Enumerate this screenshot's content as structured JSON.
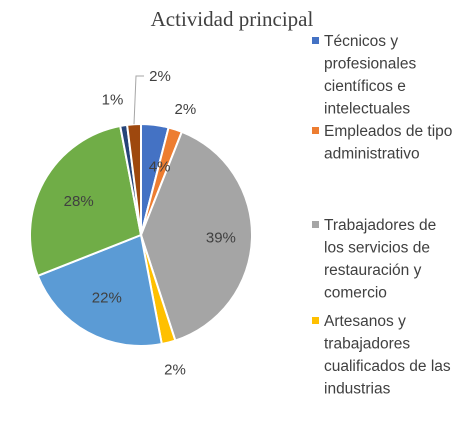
{
  "chart_data": {
    "type": "pie",
    "title": "Actividad principal",
    "start_angle_deg": 0,
    "direction": "clockwise",
    "slices": [
      {
        "label": "Técnicos y profesionales científicos e intelectuales",
        "value": 4,
        "display": "4%",
        "color": "#4472C4",
        "label_lines": [
          "Técnicos y",
          "profesionales",
          "científicos e",
          "intelectuales"
        ]
      },
      {
        "label": "Empleados de tipo administrativo",
        "value": 2,
        "display": "2%",
        "color": "#ED7D31",
        "label_lines": [
          "Empleados de tipo",
          "administrativo"
        ]
      },
      {
        "label": "Trabajadores de los servicios de restauración y comercio",
        "value": 39,
        "display": "39%",
        "color": "#A5A5A5",
        "label_lines": [
          "Trabajadores de",
          "los servicios de",
          "restauración y",
          "comercio"
        ]
      },
      {
        "label": "Artesanos y trabajadores cualificados de las industrias",
        "value": 2,
        "display": "2%",
        "color": "#FFC000",
        "label_lines": [
          "Artesanos y",
          "trabajadores",
          "cualificados de las",
          "industrias"
        ]
      },
      {
        "label": "",
        "value": 22,
        "display": "22%",
        "color": "#5B9BD5",
        "label_lines": []
      },
      {
        "label": "",
        "value": 28,
        "display": "28%",
        "color": "#70AD47",
        "label_lines": []
      },
      {
        "label": "",
        "value": 1,
        "display": "1%",
        "color": "#264478",
        "label_lines": []
      },
      {
        "label": "",
        "value": 2,
        "display": "2%",
        "color": "#9E480E",
        "label_lines": []
      }
    ],
    "legend_position": "right"
  }
}
